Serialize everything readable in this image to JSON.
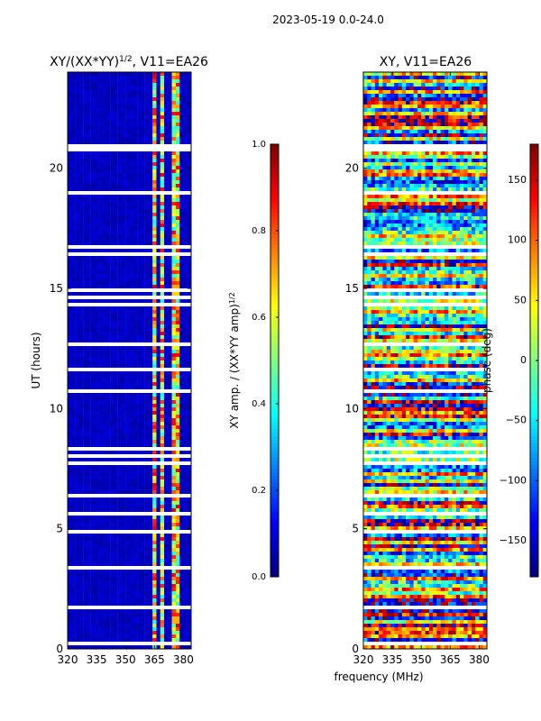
{
  "figure": {
    "suptitle": "2023-05-19 0.0-24.0",
    "shared_xlabel": "frequency (MHz)"
  },
  "colors": {
    "jet": [
      "#00007f",
      "#0000ff",
      "#007fff",
      "#00ffff",
      "#7fff7f",
      "#ffff00",
      "#ff7f00",
      "#ff0000",
      "#7f0000"
    ],
    "flagged": "#ffffff",
    "frame": "#000000"
  },
  "chart_data": [
    {
      "type": "heatmap",
      "title": "XY/(XX*YY)^1/2, V11=EA26",
      "title_main": "XY/(XX*YY)",
      "title_exp": "1/2",
      "title_tail": ", V11=EA26",
      "xlabel": "",
      "ylabel": "UT (hours)",
      "xlim": [
        320,
        384
      ],
      "ylim": [
        0,
        24
      ],
      "x_ticks": [
        320,
        335,
        350,
        365,
        380
      ],
      "y_ticks": [
        0,
        5,
        10,
        15,
        20
      ],
      "colorbar": {
        "label": "XY amp. / (XX*YY amp)^1/2",
        "label_main": "XY amp. / (XX*YY amp)",
        "label_exp": "1/2",
        "range": [
          0.0,
          1.0
        ],
        "ticks": [
          "0.0",
          "0.2",
          "0.4",
          "0.6",
          "0.8",
          "1.0"
        ]
      },
      "content_description": "Mostly low amplitude (~0.05) background; elevated amplitude (0.4-0.9) in bands 363-366, 368-371 and 374-379 MHz; many flagged (blank) time rows."
    },
    {
      "type": "heatmap",
      "title": "XY, V11=EA26",
      "xlabel": "",
      "ylabel": "",
      "xlim": [
        320,
        384
      ],
      "ylim": [
        0,
        24
      ],
      "x_ticks": [
        320,
        335,
        350,
        365,
        380
      ],
      "y_ticks": [
        0,
        5,
        10,
        15,
        20
      ],
      "colorbar": {
        "label": "phase (deg)",
        "range": [
          -180,
          180
        ],
        "ticks": [
          "150",
          "100",
          "50",
          "0",
          "−50",
          "−100",
          "−150"
        ]
      },
      "content_description": "Noisy XY phase spanning -180 to 180 degrees with horizontal streaks; many flagged (blank) time rows."
    }
  ]
}
